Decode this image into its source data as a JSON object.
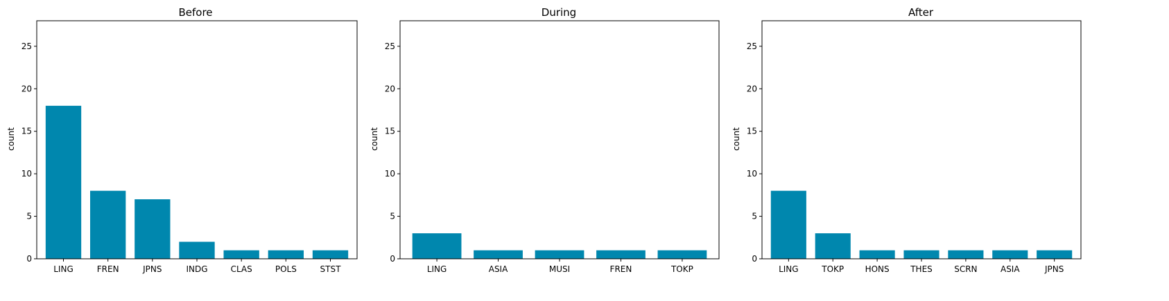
{
  "chart_data": [
    {
      "type": "bar",
      "title": "Before",
      "ylabel": "count",
      "xlabel": "",
      "ylim": [
        0,
        28
      ],
      "yticks": [
        0,
        5,
        10,
        15,
        20,
        25
      ],
      "categories": [
        "LING",
        "FREN",
        "JPNS",
        "INDG",
        "CLAS",
        "POLS",
        "STST"
      ],
      "values": [
        18,
        8,
        7,
        2,
        1,
        1,
        1
      ],
      "color": "#0087ae",
      "grid": false
    },
    {
      "type": "bar",
      "title": "During",
      "ylabel": "count",
      "xlabel": "",
      "ylim": [
        0,
        28
      ],
      "yticks": [
        0,
        5,
        10,
        15,
        20,
        25
      ],
      "categories": [
        "LING",
        "ASIA",
        "MUSI",
        "FREN",
        "TOKP"
      ],
      "values": [
        3,
        1,
        1,
        1,
        1
      ],
      "color": "#0087ae",
      "grid": false
    },
    {
      "type": "bar",
      "title": "After",
      "ylabel": "count",
      "xlabel": "",
      "ylim": [
        0,
        28
      ],
      "yticks": [
        0,
        5,
        10,
        15,
        20,
        25
      ],
      "categories": [
        "LING",
        "TOKP",
        "HONS",
        "THES",
        "SCRN",
        "ASIA",
        "JPNS"
      ],
      "values": [
        8,
        3,
        1,
        1,
        1,
        1,
        1
      ],
      "color": "#0087ae",
      "grid": false
    }
  ]
}
